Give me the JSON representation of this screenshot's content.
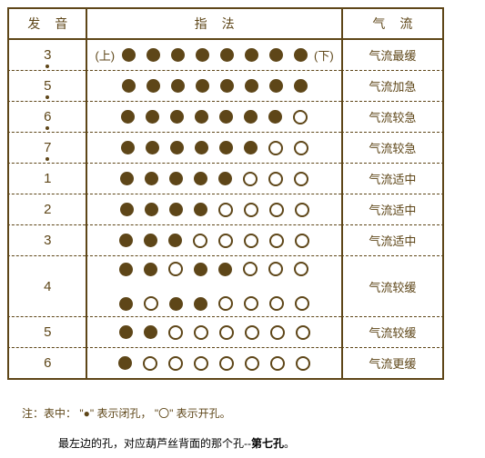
{
  "headers": {
    "col1": "发音",
    "col2": "指法",
    "col3": "气流"
  },
  "labels": {
    "upper": "(上)",
    "lower": "(下)"
  },
  "rows": [
    {
      "note": "3",
      "dotBelow": true,
      "dotAbove": false,
      "patterns": [
        [
          "c",
          "c",
          "c",
          "c",
          "c",
          "c",
          "c",
          "c"
        ]
      ],
      "airflow": "气流最缓",
      "showLabels": true,
      "double": false
    },
    {
      "note": "5",
      "dotBelow": true,
      "dotAbove": false,
      "patterns": [
        [
          "c",
          "c",
          "c",
          "c",
          "c",
          "c",
          "c",
          "c"
        ]
      ],
      "airflow": "气流加急",
      "showLabels": false,
      "double": false
    },
    {
      "note": "6",
      "dotBelow": true,
      "dotAbove": false,
      "patterns": [
        [
          "c",
          "c",
          "c",
          "c",
          "c",
          "c",
          "c",
          "o"
        ]
      ],
      "airflow": "气流较急",
      "showLabels": false,
      "double": false
    },
    {
      "note": "7",
      "dotBelow": true,
      "dotAbove": false,
      "patterns": [
        [
          "c",
          "c",
          "c",
          "c",
          "c",
          "c",
          "o",
          "o"
        ]
      ],
      "airflow": "气流较急",
      "showLabels": false,
      "double": false
    },
    {
      "note": "1",
      "dotBelow": false,
      "dotAbove": false,
      "patterns": [
        [
          "c",
          "c",
          "c",
          "c",
          "c",
          "o",
          "o",
          "o"
        ]
      ],
      "airflow": "气流适中",
      "showLabels": false,
      "double": false
    },
    {
      "note": "2",
      "dotBelow": false,
      "dotAbove": false,
      "patterns": [
        [
          "c",
          "c",
          "c",
          "c",
          "o",
          "o",
          "o",
          "o"
        ]
      ],
      "airflow": "气流适中",
      "showLabels": false,
      "double": false
    },
    {
      "note": "3",
      "dotBelow": false,
      "dotAbove": false,
      "patterns": [
        [
          "c",
          "c",
          "c",
          "o",
          "o",
          "o",
          "o",
          "o"
        ]
      ],
      "airflow": "气流适中",
      "showLabels": false,
      "double": false
    },
    {
      "note": "4",
      "dotBelow": false,
      "dotAbove": false,
      "patterns": [
        [
          "c",
          "c",
          "o",
          "c",
          "c",
          "o",
          "o",
          "o"
        ],
        [
          "c",
          "o",
          "c",
          "c",
          "o",
          "o",
          "o",
          "o"
        ]
      ],
      "airflow": "气流较缓",
      "showLabels": false,
      "double": true
    },
    {
      "note": "5",
      "dotBelow": false,
      "dotAbove": false,
      "patterns": [
        [
          "c",
          "c",
          "o",
          "o",
          "o",
          "o",
          "o",
          "o"
        ]
      ],
      "airflow": "气流较缓",
      "showLabels": false,
      "double": false
    },
    {
      "note": "6",
      "dotBelow": false,
      "dotAbove": false,
      "patterns": [
        [
          "c",
          "o",
          "o",
          "o",
          "o",
          "o",
          "o",
          "o"
        ]
      ],
      "airflow": "气流更缓",
      "showLabels": false,
      "double": false,
      "last": true
    }
  ],
  "footer": {
    "line1_prefix": "注：表中：",
    "line1_closed": "\"●\" 表示闭孔，",
    "line1_open": "\"〇\" 表示开孔。",
    "line2_prefix": "最左边的孔，对应葫芦丝背面的那个孔--",
    "line2_bold": "第七孔",
    "line2_suffix": "。"
  },
  "colors": {
    "brand": "#5e4618",
    "bg": "#ffffff"
  }
}
